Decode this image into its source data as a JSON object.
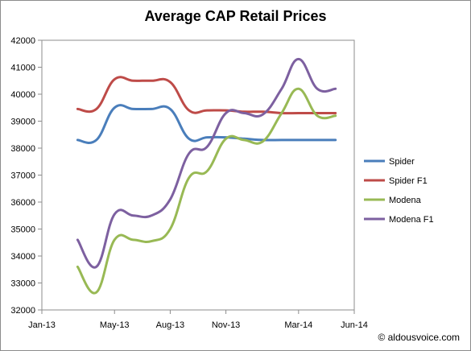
{
  "chart_data": {
    "type": "line",
    "title": "Average CAP Retail Prices",
    "xlabel": "",
    "ylabel": "",
    "x_ticks": [
      "Jan-13",
      "May-13",
      "Aug-13",
      "Nov-13",
      "Mar-14",
      "Jun-14"
    ],
    "y_ticks": [
      "32000",
      "33000",
      "34000",
      "35000",
      "36000",
      "37000",
      "38000",
      "39000",
      "40000",
      "41000",
      "42000"
    ],
    "ylim": [
      32000,
      42000
    ],
    "grid": false,
    "legend": "right",
    "x": [
      "2013-03-01",
      "2013-04-01",
      "2013-05-01",
      "2013-06-01",
      "2013-07-01",
      "2013-08-01",
      "2013-09-01",
      "2013-10-01",
      "2013-11-01",
      "2013-12-01",
      "2014-01-01",
      "2014-02-01",
      "2014-03-01",
      "2014-04-01",
      "2014-05-01"
    ],
    "series": [
      {
        "name": "Spider",
        "color": "#4a7ebb",
        "values": [
          38300,
          38300,
          39500,
          39450,
          39450,
          39450,
          38350,
          38400,
          38400,
          38350,
          38300,
          38300,
          38300,
          38300,
          38300
        ]
      },
      {
        "name": "Spider F1",
        "color": "#be4b48",
        "values": [
          39450,
          39450,
          40550,
          40500,
          40500,
          40450,
          39400,
          39400,
          39400,
          39350,
          39350,
          39300,
          39300,
          39300,
          39300
        ]
      },
      {
        "name": "Modena",
        "color": "#98b954",
        "values": [
          33600,
          32650,
          34600,
          34600,
          34550,
          35000,
          36900,
          37150,
          38350,
          38300,
          38250,
          39300,
          40200,
          39200,
          39200
        ]
      },
      {
        "name": "Modena F1",
        "color": "#7d60a0",
        "values": [
          34600,
          33600,
          35550,
          35500,
          35500,
          36100,
          37800,
          38050,
          39300,
          39300,
          39250,
          40200,
          41300,
          40200,
          40200
        ]
      }
    ]
  },
  "watermark": "© aldousvoice.com"
}
